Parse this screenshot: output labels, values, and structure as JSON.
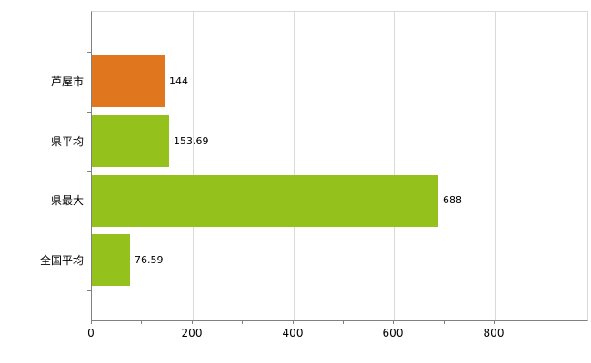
{
  "chart_data": {
    "type": "bar",
    "orientation": "horizontal",
    "title": "",
    "categories": [
      "芦屋市",
      "県平均",
      "県最大",
      "全国平均"
    ],
    "values": [
      144,
      153.69,
      688,
      76.59
    ],
    "value_labels": [
      "144",
      "153.69",
      "688",
      "76.59"
    ],
    "bar_colors": [
      "#e0771f",
      "#94c11c",
      "#94c11c",
      "#94c11c"
    ],
    "x_axis": {
      "min": 0,
      "max": 800,
      "major_ticks": [
        0,
        200,
        400,
        600,
        800
      ],
      "major_tick_labels": [
        "0",
        "200",
        "400",
        "600",
        "800"
      ],
      "minor_tick_step": 100
    },
    "legend": "none",
    "grid": "vertical-major",
    "style": {
      "background": "#ffffff",
      "gridline_color": "#d9d9d9",
      "axis_color": "#808080",
      "label_color": "#000000"
    }
  }
}
